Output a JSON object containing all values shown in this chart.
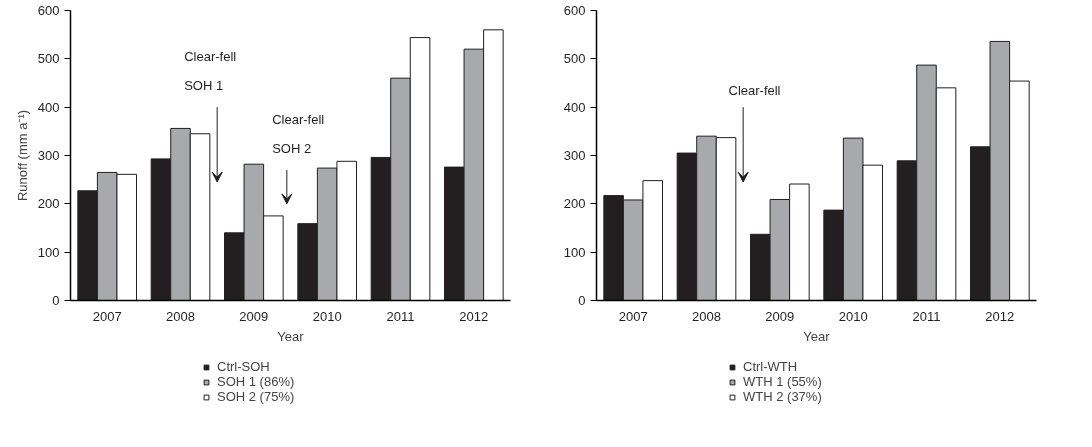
{
  "chart_data": [
    {
      "type": "bar",
      "xlabel": "Year",
      "ylabel": "Runoff (mm a⁻¹)",
      "categories": [
        "2007",
        "2008",
        "2009",
        "2010",
        "2011",
        "2012"
      ],
      "ylim": [
        0,
        600
      ],
      "yticks": [
        0,
        100,
        200,
        300,
        400,
        500,
        600
      ],
      "grid": false,
      "legend": "bottom left",
      "series": [
        {
          "name": "Ctrl-SOH",
          "color": "#231f20",
          "values": [
            227,
            293,
            140,
            159,
            296,
            276
          ]
        },
        {
          "name": "SOH 1 (86%)",
          "color": "#a7a9ac",
          "values": [
            265,
            356,
            282,
            274,
            460,
            520
          ]
        },
        {
          "name": "SOH 2 (75%)",
          "color": "#ffffff",
          "values": [
            261,
            345,
            175,
            288,
            544,
            560
          ]
        }
      ],
      "annotations": [
        "Clear-fell\nSOH 1",
        "Clear-fell\nSOH 2"
      ]
    },
    {
      "type": "bar",
      "xlabel": "Year",
      "categories": [
        "2007",
        "2008",
        "2009",
        "2010",
        "2011",
        "2012"
      ],
      "ylim": [
        0,
        600
      ],
      "yticks": [
        0,
        100,
        200,
        300,
        400,
        500,
        600
      ],
      "grid": false,
      "legend": "bottom left",
      "series": [
        {
          "name": "Ctrl-WTH",
          "color": "#231f20",
          "values": [
            217,
            305,
            137,
            187,
            289,
            318
          ]
        },
        {
          "name": "WTH 1 (55%)",
          "color": "#a7a9ac",
          "values": [
            208,
            340,
            209,
            336,
            487,
            536
          ]
        },
        {
          "name": "WTH 2 (37%)",
          "color": "#ffffff",
          "values": [
            248,
            337,
            241,
            280,
            440,
            454
          ]
        }
      ],
      "annotations": [
        "Clear-fell"
      ]
    }
  ]
}
